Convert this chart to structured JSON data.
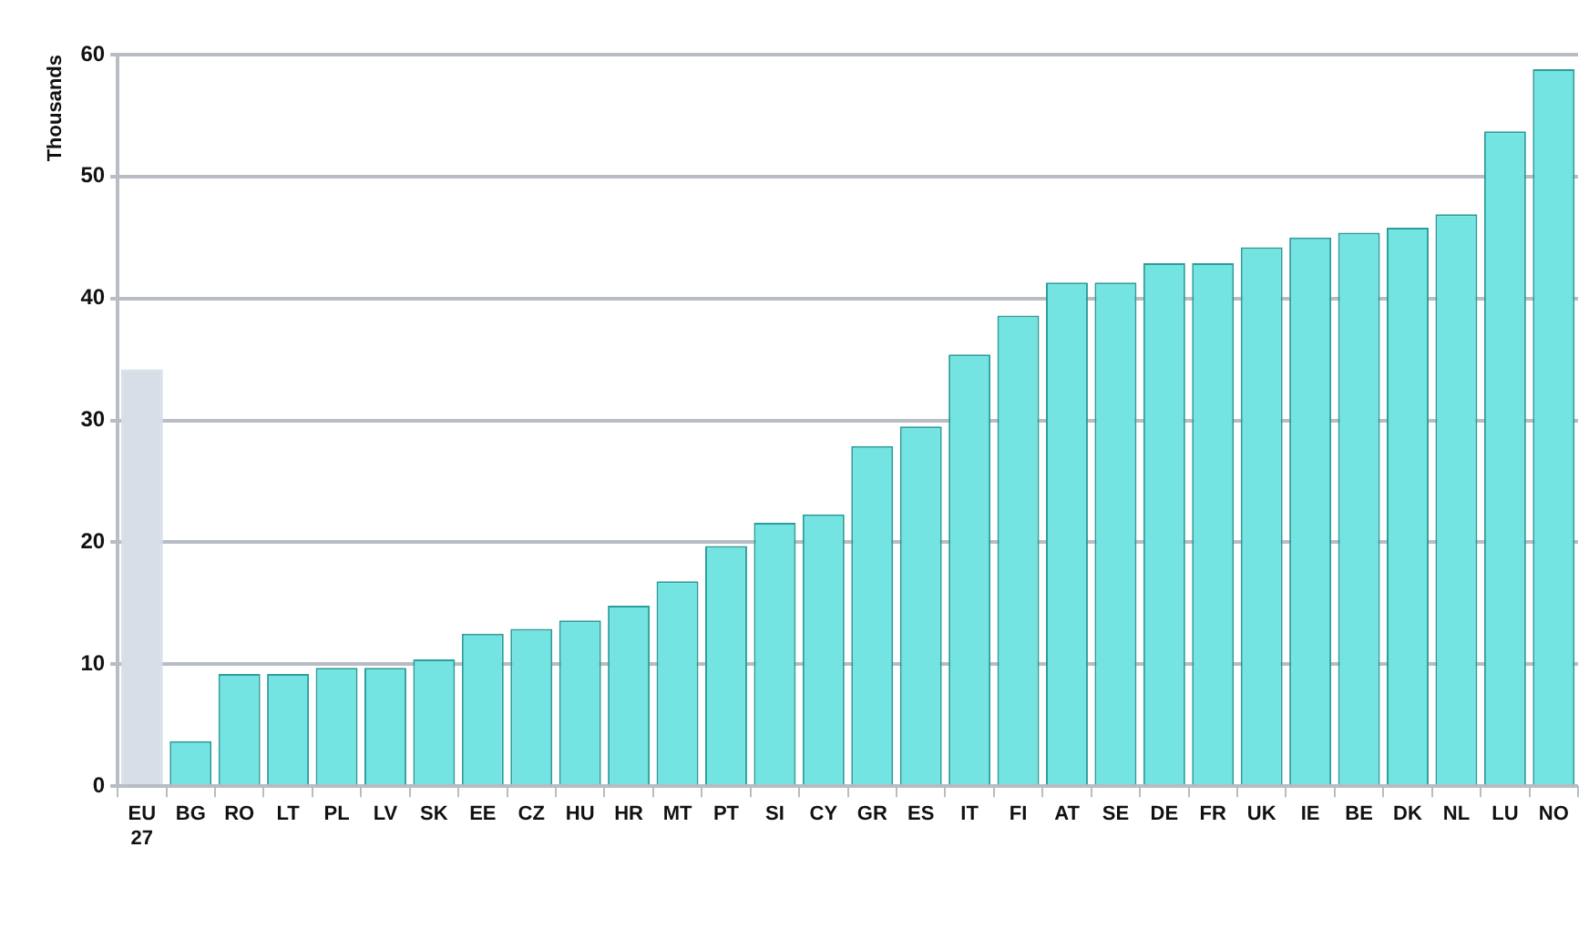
{
  "chart_data": {
    "type": "bar",
    "ylabel": "Thousands",
    "categories": [
      "EU 27",
      "BG",
      "RO",
      "LT",
      "PL",
      "LV",
      "SK",
      "EE",
      "CZ",
      "HU",
      "HR",
      "MT",
      "PT",
      "SI",
      "CY",
      "GR",
      "ES",
      "IT",
      "FI",
      "AT",
      "SE",
      "DE",
      "FR",
      "UK",
      "IE",
      "BE",
      "DK",
      "NL",
      "LU",
      "NO"
    ],
    "values": [
      34.2,
      3.7,
      9.2,
      9.2,
      9.7,
      9.7,
      10.4,
      12.5,
      12.9,
      13.6,
      14.8,
      16.8,
      19.7,
      21.6,
      22.3,
      27.9,
      29.5,
      35.4,
      38.6,
      41.3,
      41.3,
      42.9,
      42.9,
      44.2,
      45.0,
      45.4,
      45.8,
      46.9,
      53.7,
      58.8
    ],
    "colors": [
      "#d8dee8",
      "#73e4e1",
      "#73e4e1",
      "#73e4e1",
      "#73e4e1",
      "#73e4e1",
      "#73e4e1",
      "#73e4e1",
      "#73e4e1",
      "#73e4e1",
      "#73e4e1",
      "#73e4e1",
      "#73e4e1",
      "#73e4e1",
      "#73e4e1",
      "#73e4e1",
      "#73e4e1",
      "#73e4e1",
      "#73e4e1",
      "#73e4e1",
      "#73e4e1",
      "#73e4e1",
      "#73e4e1",
      "#73e4e1",
      "#73e4e1",
      "#73e4e1",
      "#73e4e1",
      "#73e4e1",
      "#73e4e1",
      "#73e4e1"
    ],
    "ylim": [
      0,
      60
    ],
    "yticks": [
      0,
      10,
      20,
      30,
      40,
      50,
      60
    ],
    "grid": "y"
  }
}
